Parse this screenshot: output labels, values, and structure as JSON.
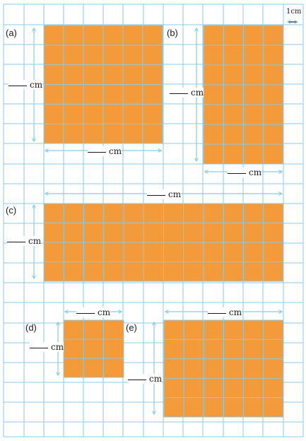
{
  "colors": {
    "grid": "#8ccbe6",
    "rect_fill": "#f39a3a",
    "arrow": "#8ccbe6",
    "text": "#1a1a1a"
  },
  "scale_label": "1cm",
  "unit": "cm",
  "figures": [
    {
      "label": "(a)",
      "width_cells": 6,
      "height_cells": 6
    },
    {
      "label": "(b)",
      "width_cells": 4,
      "height_cells": 7
    },
    {
      "label": "(c)",
      "width_cells": 12,
      "height_cells": 4
    },
    {
      "label": "(d)",
      "width_cells": 3,
      "height_cells": 3
    },
    {
      "label": "(e)",
      "width_cells": 6,
      "height_cells": 5
    }
  ]
}
